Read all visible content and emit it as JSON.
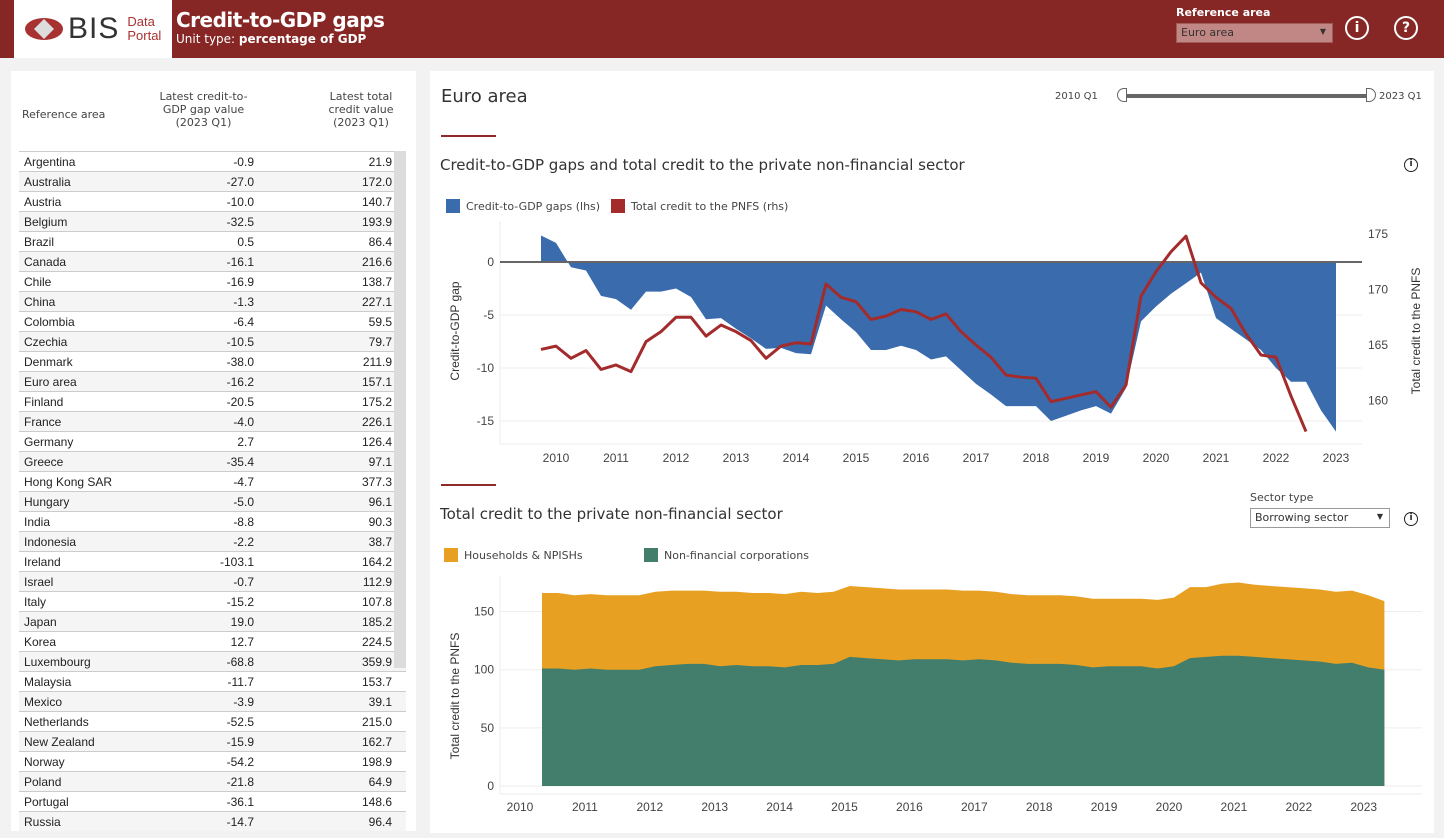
{
  "header": {
    "logo_text": "BIS",
    "logo_sub_1": "Data",
    "logo_sub_2": "Portal",
    "title": "Credit-to-GDP gaps",
    "unit_prefix": "Unit type: ",
    "unit_value": "percentage of GDP",
    "reference_area_label": "Reference area",
    "reference_area_value": "Euro area",
    "info_icon": "i",
    "help_icon": "?"
  },
  "table": {
    "headers": [
      "Reference area",
      "Latest credit-to-GDP gap value (2023 Q1)",
      "Latest total credit value (2023 Q1)"
    ],
    "header_lines": {
      "col1": [
        "Latest credit-to-",
        "GDP gap value",
        "(2023 Q1)"
      ],
      "col2": [
        "Latest total",
        "credit value",
        "(2023 Q1)"
      ]
    },
    "rows": [
      [
        "Argentina",
        "-0.9",
        "21.9"
      ],
      [
        "Australia",
        "-27.0",
        "172.0"
      ],
      [
        "Austria",
        "-10.0",
        "140.7"
      ],
      [
        "Belgium",
        "-32.5",
        "193.9"
      ],
      [
        "Brazil",
        "0.5",
        "86.4"
      ],
      [
        "Canada",
        "-16.1",
        "216.6"
      ],
      [
        "Chile",
        "-16.9",
        "138.7"
      ],
      [
        "China",
        "-1.3",
        "227.1"
      ],
      [
        "Colombia",
        "-6.4",
        "59.5"
      ],
      [
        "Czechia",
        "-10.5",
        "79.7"
      ],
      [
        "Denmark",
        "-38.0",
        "211.9"
      ],
      [
        "Euro area",
        "-16.2",
        "157.1"
      ],
      [
        "Finland",
        "-20.5",
        "175.2"
      ],
      [
        "France",
        "-4.0",
        "226.1"
      ],
      [
        "Germany",
        "2.7",
        "126.4"
      ],
      [
        "Greece",
        "-35.4",
        "97.1"
      ],
      [
        "Hong Kong SAR",
        "-4.7",
        "377.3"
      ],
      [
        "Hungary",
        "-5.0",
        "96.1"
      ],
      [
        "India",
        "-8.8",
        "90.3"
      ],
      [
        "Indonesia",
        "-2.2",
        "38.7"
      ],
      [
        "Ireland",
        "-103.1",
        "164.2"
      ],
      [
        "Israel",
        "-0.7",
        "112.9"
      ],
      [
        "Italy",
        "-15.2",
        "107.8"
      ],
      [
        "Japan",
        "19.0",
        "185.2"
      ],
      [
        "Korea",
        "12.7",
        "224.5"
      ],
      [
        "Luxembourg",
        "-68.8",
        "359.9"
      ],
      [
        "Malaysia",
        "-11.7",
        "153.7"
      ],
      [
        "Mexico",
        "-3.9",
        "39.1"
      ],
      [
        "Netherlands",
        "-52.5",
        "215.0"
      ],
      [
        "New Zealand",
        "-15.9",
        "162.7"
      ],
      [
        "Norway",
        "-54.2",
        "198.9"
      ],
      [
        "Poland",
        "-21.8",
        "64.9"
      ],
      [
        "Portugal",
        "-36.1",
        "148.6"
      ],
      [
        "Russia",
        "-14.7",
        "96.4"
      ]
    ]
  },
  "main": {
    "area_title": "Euro area",
    "slider_start": "2010 Q1",
    "slider_end": "2023 Q1",
    "chart1_title": "Credit-to-GDP gaps and total credit to the private non-financial sector",
    "chart2_title": "Total credit to the private non-financial sector",
    "sector_label": "Sector type",
    "sector_value": "Borrowing sector"
  },
  "chart_data": [
    {
      "type": "area+line",
      "title": "Credit-to-GDP gaps and total credit to the private non-financial sector",
      "xlabel": "",
      "ylabel": "Credit-to-GDP gap",
      "y2label": "Total credit to the PNFS",
      "ylim": [
        -17,
        3
      ],
      "y2lim": [
        157,
        176
      ],
      "yticks": [
        0,
        -5,
        -10,
        -15
      ],
      "y2ticks": [
        175,
        170,
        165,
        160
      ],
      "xticks": [
        "2010",
        "2011",
        "2012",
        "2013",
        "2014",
        "2015",
        "2016",
        "2017",
        "2018",
        "2019",
        "2020",
        "2021",
        "2022",
        "2023"
      ],
      "x_start": "2009 Q4",
      "x_step": "quarter",
      "legend": [
        "Credit-to-GDP gaps (lhs)",
        "Total credit to the PNFS (rhs)"
      ],
      "legend_position": "top-left",
      "colors": {
        "gap": "#3a6bad",
        "credit": "#a32b2b",
        "zero_line": "#666666"
      },
      "series": [
        {
          "name": "Credit-to-GDP gaps (lhs)",
          "kind": "area",
          "values": [
            2.5,
            1.8,
            -0.5,
            -0.8,
            -3.2,
            -3.5,
            -4.5,
            -2.8,
            -2.8,
            -2.5,
            -3.3,
            -5.4,
            -5.3,
            -6.3,
            -7.2,
            -8.2,
            -8.1,
            -8.6,
            -8.7,
            -4.1,
            -5.4,
            -6.6,
            -8.3,
            -8.3,
            -7.9,
            -8.3,
            -9.2,
            -8.9,
            -10.2,
            -11.5,
            -12.5,
            -13.6,
            -13.6,
            -13.6,
            -15.0,
            -14.5,
            -14.0,
            -13.6,
            -14.3,
            -11.9,
            -5.6,
            -4.2,
            -3.0,
            -2.0,
            -1.0,
            -5.3,
            -6.3,
            -7.3,
            -8.3,
            -10.0,
            -11.3,
            -11.3,
            -14.0,
            -16.0
          ],
          "comment": "2009Q4 to 2022Q4"
        },
        {
          "name": "Total credit to the PNFS (rhs)",
          "kind": "line",
          "values": [
            164.6,
            164.9,
            163.8,
            164.5,
            162.8,
            163.2,
            162.6,
            165.3,
            166.2,
            167.5,
            167.5,
            165.8,
            166.8,
            166.2,
            165.4,
            163.8,
            164.9,
            165.2,
            165.1,
            170.5,
            169.3,
            168.9,
            167.3,
            167.6,
            168.2,
            168.0,
            167.3,
            167.8,
            166.2,
            165.0,
            163.9,
            162.3,
            162.1,
            162.0,
            159.9,
            160.2,
            160.5,
            160.8,
            159.4,
            161.4,
            169.4,
            171.6,
            173.4,
            174.8,
            170.6,
            169.3,
            168.3,
            166.0,
            164.1,
            163.9,
            160.4,
            157.2
          ],
          "comment": "2009Q4 to 2022Q3"
        }
      ]
    },
    {
      "type": "area",
      "stacked": true,
      "title": "Total credit to the private non-financial sector",
      "xlabel": "",
      "ylabel": "Total credit to the PNFS",
      "ylim": [
        0,
        180
      ],
      "yticks": [
        0,
        50,
        100,
        150
      ],
      "xticks": [
        "2010",
        "2011",
        "2012",
        "2013",
        "2014",
        "2015",
        "2016",
        "2017",
        "2018",
        "2019",
        "2020",
        "2021",
        "2022",
        "2023"
      ],
      "x_start": "2010 Q2",
      "x_step": "quarter",
      "legend": [
        "Households & NPISHs",
        "Non-financial corporations"
      ],
      "legend_position": "top-left",
      "colors": {
        "households": "#e8a022",
        "nfc": "#427e6b"
      },
      "series": [
        {
          "name": "Non-financial corporations",
          "values": [
            101,
            101,
            100,
            101,
            100,
            100,
            100,
            103,
            104,
            105,
            105,
            103,
            104,
            103,
            103,
            102,
            104,
            104,
            105,
            111,
            110,
            109,
            108,
            109,
            109,
            109,
            108,
            109,
            108,
            106,
            105,
            105,
            105,
            104,
            102,
            103,
            103,
            103,
            101,
            103,
            110,
            111,
            112,
            112,
            111,
            110,
            109,
            108,
            107,
            105,
            106,
            102,
            100
          ]
        },
        {
          "name": "Households & NPISHs",
          "values": [
            65,
            65,
            64,
            64,
            64,
            64,
            64,
            64,
            64,
            63,
            63,
            64,
            63,
            63,
            63,
            63,
            63,
            62,
            62,
            61,
            61,
            61,
            61,
            60,
            60,
            60,
            60,
            59,
            59,
            59,
            59,
            59,
            59,
            59,
            59,
            58,
            58,
            58,
            59,
            59,
            61,
            60,
            62,
            63,
            62,
            62,
            62,
            62,
            62,
            62,
            62,
            62,
            59
          ]
        }
      ]
    }
  ]
}
